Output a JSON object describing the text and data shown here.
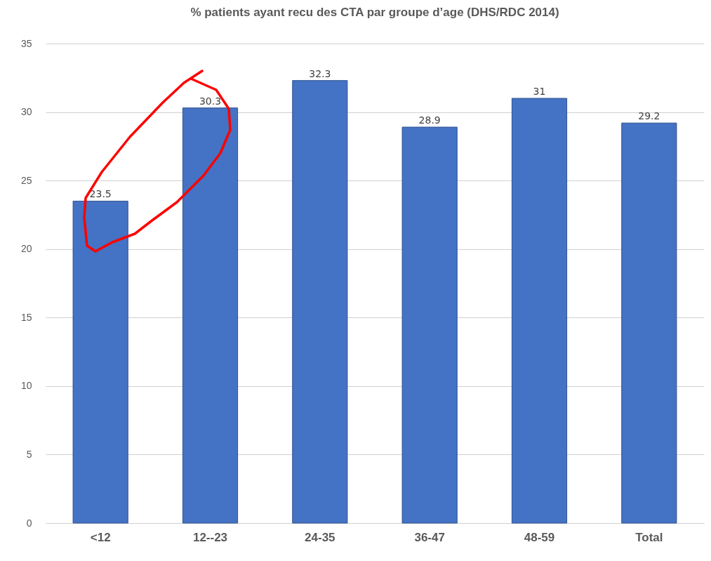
{
  "chart_data": {
    "type": "bar",
    "title": "% patients ayant recu des CTA par groupe d’age (DHS/RDC 2014)",
    "categories": [
      "<12",
      "12--23",
      "24-35",
      "36-47",
      "48-59",
      "Total"
    ],
    "values": [
      23.5,
      30.3,
      32.3,
      28.9,
      31,
      29.2
    ],
    "color": "#4472c4",
    "ylim": [
      0,
      35
    ],
    "yticks": [
      0,
      5,
      10,
      15,
      20,
      25,
      30,
      35
    ],
    "grid": "y",
    "data_labels": true
  }
}
